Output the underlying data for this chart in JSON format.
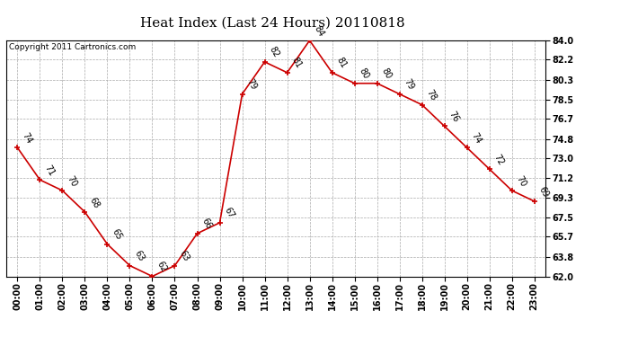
{
  "title": "Heat Index (Last 24 Hours) 20110818",
  "copyright_text": "Copyright 2011 Cartronics.com",
  "hours": [
    "00:00",
    "01:00",
    "02:00",
    "03:00",
    "04:00",
    "05:00",
    "06:00",
    "07:00",
    "08:00",
    "09:00",
    "10:00",
    "11:00",
    "12:00",
    "13:00",
    "14:00",
    "15:00",
    "16:00",
    "17:00",
    "18:00",
    "19:00",
    "20:00",
    "21:00",
    "22:00",
    "23:00"
  ],
  "values": [
    74,
    71,
    70,
    68,
    65,
    63,
    62,
    63,
    66,
    67,
    79,
    82,
    81,
    84,
    81,
    80,
    80,
    79,
    78,
    76,
    74,
    72,
    70,
    69
  ],
  "line_color": "#cc0000",
  "marker_color": "#cc0000",
  "bg_color": "#ffffff",
  "plot_bg_color": "#ffffff",
  "grid_color": "#aaaaaa",
  "ylim_min": 62.0,
  "ylim_max": 84.0,
  "yticks": [
    62.0,
    63.8,
    65.7,
    67.5,
    69.3,
    71.2,
    73.0,
    74.8,
    76.7,
    78.5,
    80.3,
    82.2,
    84.0
  ],
  "title_fontsize": 11,
  "label_fontsize": 7,
  "tick_fontsize": 7,
  "copyright_fontsize": 6.5
}
